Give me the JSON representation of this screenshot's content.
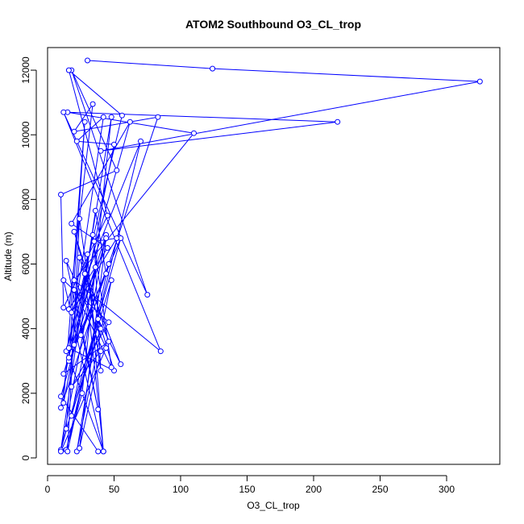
{
  "chart_data": {
    "type": "line",
    "title": "ATOM2 Southbound O3_CL_trop",
    "xlabel": "O3_CL_trop",
    "ylabel": "Altitude (m)",
    "xlim": [
      0,
      340
    ],
    "ylim": [
      -200,
      12700
    ],
    "x_ticks": [
      0,
      50,
      100,
      150,
      200,
      250,
      300
    ],
    "x_tick_labels": [
      "0",
      "50",
      "100",
      "150",
      "200",
      "250",
      "300"
    ],
    "y_ticks": [
      0,
      2000,
      4000,
      6000,
      8000,
      10000,
      12000
    ],
    "y_tick_labels": [
      "0",
      "2000",
      "4000",
      "6000",
      "8000",
      "10000",
      "12000"
    ],
    "grid": false,
    "series_color": "#0000ff",
    "marker": "open-circle",
    "series": [
      {
        "x": [
          30,
          124,
          325,
          40,
          218,
          15,
          110,
          20,
          85,
          12,
          75,
          18,
          52,
          10,
          12,
          45,
          16,
          56,
          14,
          62,
          18,
          45,
          16,
          34,
          20,
          83,
          10,
          42,
          22,
          50,
          12,
          28,
          16,
          55,
          10,
          36,
          44,
          20,
          48,
          26,
          14,
          70,
          18,
          52,
          35,
          40,
          24,
          15,
          46,
          25,
          30,
          42,
          28,
          55,
          38,
          22,
          48,
          18,
          44,
          16,
          50,
          24,
          14,
          40,
          20,
          46,
          12,
          36,
          10,
          44,
          14,
          38,
          20,
          48,
          34,
          16,
          42,
          12,
          46,
          18,
          40,
          24,
          44,
          10,
          38
        ],
        "y": [
          12300,
          12050,
          11650,
          9500,
          10400,
          10700,
          10050,
          5500,
          3300,
          10700,
          5050,
          12000,
          8900,
          8150,
          4650,
          7500,
          12000,
          10600,
          3300,
          10400,
          7250,
          6500,
          4600,
          10950,
          10100,
          10550,
          1550,
          10550,
          9800,
          9700,
          1700,
          10400,
          3000,
          6800,
          250,
          7650,
          5700,
          3500,
          10550,
          2000,
          250,
          9800,
          4500,
          6800,
          6700,
          2700,
          7400,
          200,
          6000,
          3800,
          6300,
          200,
          5700,
          2900,
          4300,
          200,
          5500,
          1300,
          6900,
          3400,
          2700,
          6200,
          900,
          4000,
          7000,
          3600,
          2600,
          5900,
          200,
          3400,
          6100,
          1500,
          5200,
          2800,
          6900,
          3100,
          200,
          5500,
          4200,
          2200,
          3300,
          300,
          6800,
          1900,
          200
        ]
      }
    ]
  }
}
